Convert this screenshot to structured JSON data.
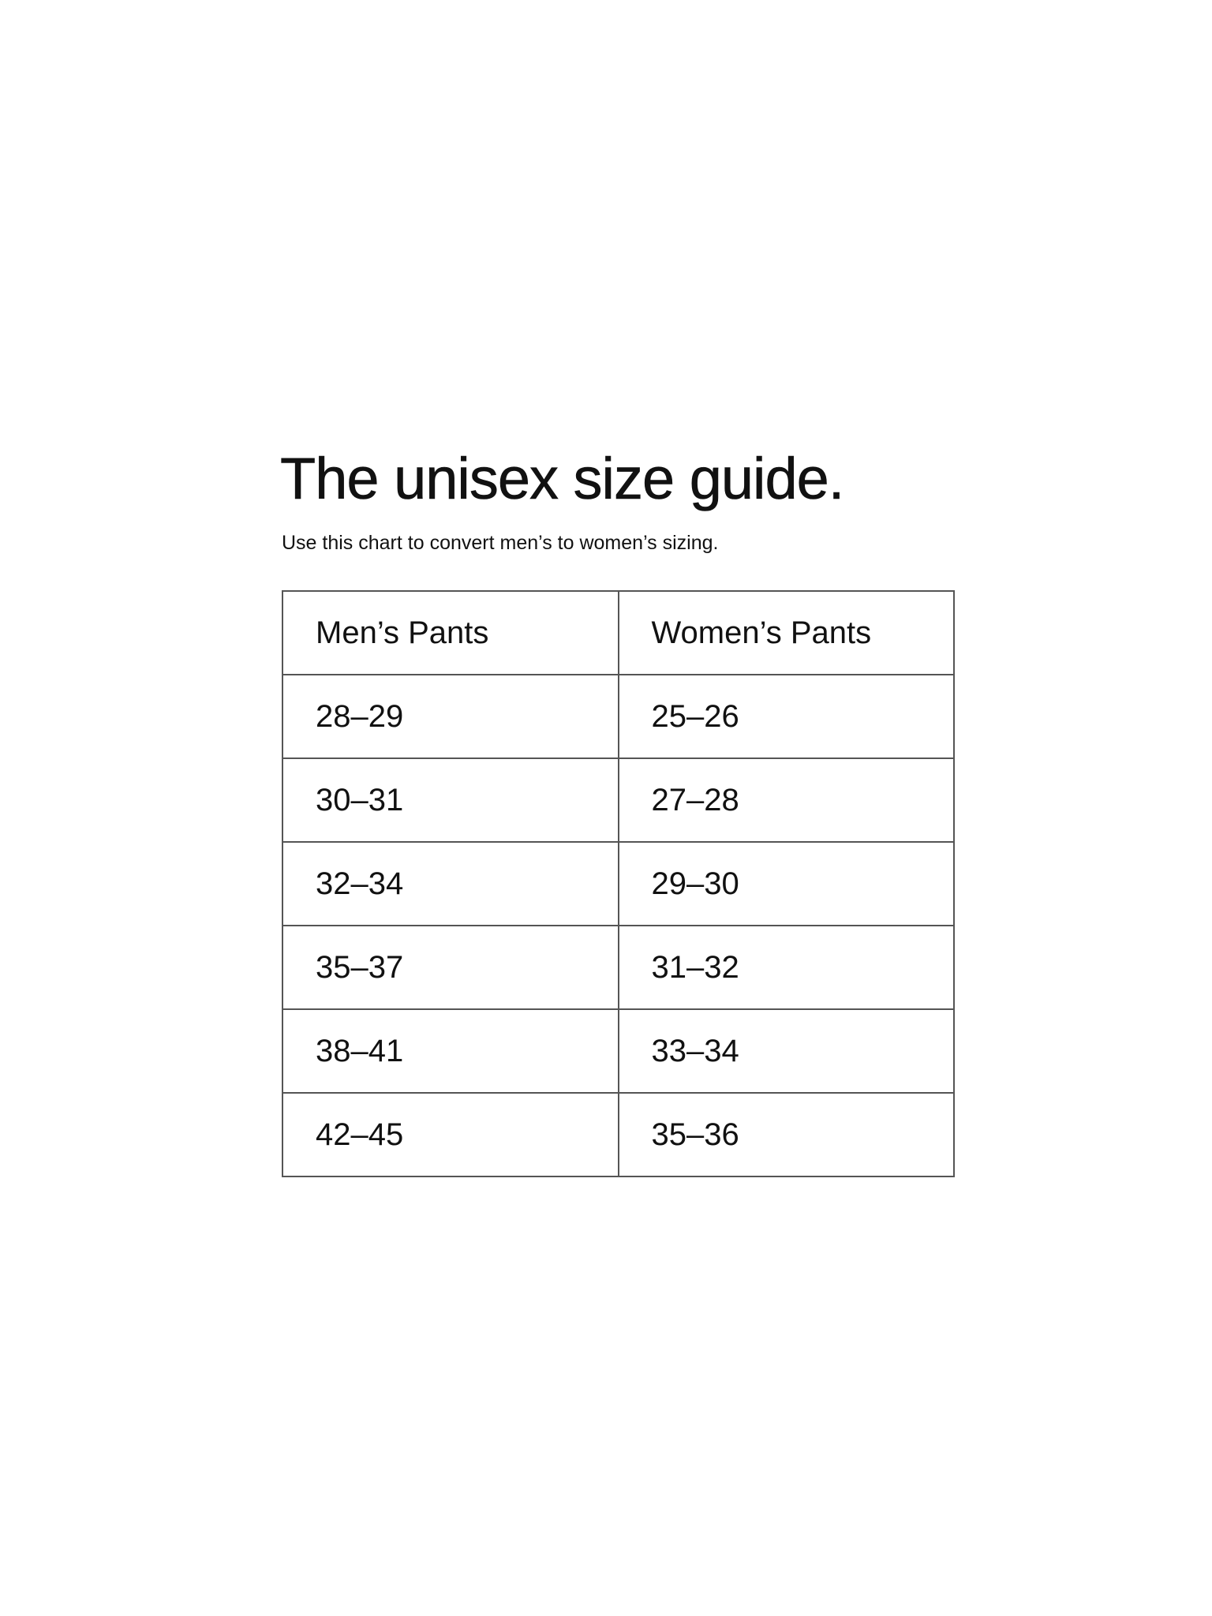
{
  "title": "The unisex size guide.",
  "subtitle": "Use this chart to convert men’s to women’s sizing.",
  "table": {
    "headers": [
      "Men’s Pants",
      "Women’s Pants"
    ],
    "rows": [
      [
        "28–29",
        "25–26"
      ],
      [
        "30–31",
        "27–28"
      ],
      [
        "32–34",
        "29–30"
      ],
      [
        "35–37",
        "31–32"
      ],
      [
        "38–41",
        "33–34"
      ],
      [
        "42–45",
        "35–36"
      ]
    ]
  }
}
